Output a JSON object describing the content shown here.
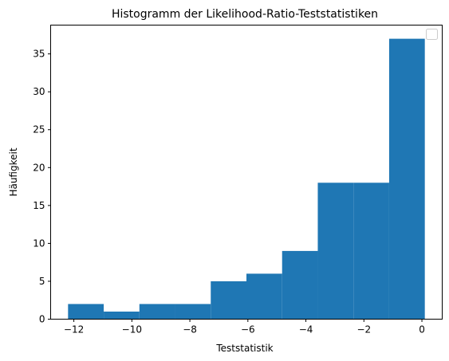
{
  "chart_data": {
    "type": "bar",
    "title": "Histogramm der Likelihood-Ratio-Teststatistiken",
    "xlabel": "Teststatistik",
    "ylabel": "Häufigkeit",
    "bins": [
      {
        "x0": -12.2,
        "x1": -10.97,
        "count": 2
      },
      {
        "x0": -10.97,
        "x1": -9.74,
        "count": 1
      },
      {
        "x0": -9.74,
        "x1": -8.51,
        "count": 2
      },
      {
        "x0": -8.51,
        "x1": -7.28,
        "count": 2
      },
      {
        "x0": -7.28,
        "x1": -6.05,
        "count": 5
      },
      {
        "x0": -6.05,
        "x1": -4.82,
        "count": 6
      },
      {
        "x0": -4.82,
        "x1": -3.59,
        "count": 9
      },
      {
        "x0": -3.59,
        "x1": -2.36,
        "count": 18
      },
      {
        "x0": -2.36,
        "x1": -1.13,
        "count": 18
      },
      {
        "x0": -1.13,
        "x1": 0.1,
        "count": 37
      }
    ],
    "xlim": [
      -12.8,
      0.7
    ],
    "ylim": [
      0,
      38.8
    ],
    "xticks": [
      -12,
      -10,
      -8,
      -6,
      -4,
      -2,
      0
    ],
    "xtick_labels": [
      "−12",
      "−10",
      "−8",
      "−6",
      "−4",
      "−2",
      "0"
    ],
    "yticks": [
      0,
      5,
      10,
      15,
      20,
      25,
      30,
      35
    ],
    "ytick_labels": [
      "0",
      "5",
      "10",
      "15",
      "20",
      "25",
      "30",
      "35"
    ],
    "bar_color": "#1f77b4",
    "legend": {
      "placement": "top-right",
      "entries": []
    },
    "grid": false
  }
}
